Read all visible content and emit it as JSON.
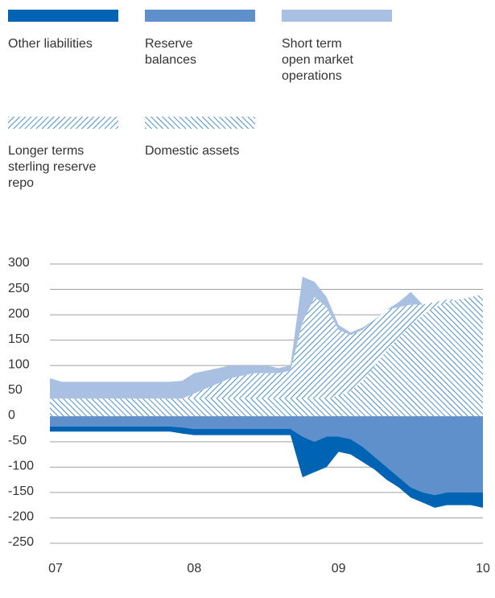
{
  "chart_data": {
    "type": "area",
    "stacked": true,
    "categories": [
      "07",
      null,
      null,
      null,
      null,
      null,
      null,
      null,
      null,
      null,
      null,
      null,
      "08",
      null,
      null,
      null,
      null,
      null,
      null,
      null,
      null,
      null,
      null,
      null,
      "09",
      null,
      null,
      null,
      null,
      null,
      null,
      null,
      null,
      null,
      null,
      null,
      "10"
    ],
    "series": [
      {
        "name": "Domestic assets",
        "color": "#0063b4",
        "pattern": "hatch-back",
        "values": [
          35,
          35,
          35,
          35,
          35,
          35,
          35,
          35,
          35,
          35,
          35,
          35,
          35,
          35,
          35,
          35,
          35,
          35,
          35,
          35,
          35,
          35,
          35,
          35,
          40,
          50,
          70,
          100,
          130,
          155,
          180,
          200,
          215,
          225,
          230,
          235,
          240
        ]
      },
      {
        "name": "Longer terms sterling reserve repo",
        "color": "#0063b4",
        "pattern": "hatch-forward",
        "values": [
          0,
          0,
          0,
          0,
          0,
          0,
          0,
          0,
          0,
          0,
          0,
          0,
          10,
          20,
          30,
          40,
          45,
          50,
          50,
          50,
          55,
          150,
          200,
          180,
          130,
          110,
          100,
          90,
          80,
          60,
          40,
          20,
          10,
          5,
          0,
          0,
          0
        ]
      },
      {
        "name": "Short term open market operations",
        "color": "#a9c0e2",
        "values": [
          40,
          33,
          33,
          33,
          33,
          33,
          33,
          33,
          33,
          33,
          33,
          35,
          40,
          35,
          30,
          25,
          20,
          15,
          15,
          10,
          10,
          90,
          30,
          20,
          10,
          5,
          5,
          0,
          0,
          10,
          25,
          0,
          0,
          0,
          0,
          0,
          0
        ]
      },
      {
        "name": "Reserve balances",
        "color": "#5f90cc",
        "values": [
          -20,
          -20,
          -20,
          -20,
          -20,
          -20,
          -20,
          -20,
          -20,
          -20,
          -20,
          -22,
          -25,
          -25,
          -25,
          -25,
          -25,
          -25,
          -25,
          -25,
          -25,
          -40,
          -50,
          -40,
          -40,
          -45,
          -60,
          -80,
          -100,
          -120,
          -140,
          -150,
          -155,
          -150,
          -150,
          -150,
          -150
        ]
      },
      {
        "name": "Other liabilities",
        "color": "#0063b4",
        "values": [
          -10,
          -10,
          -10,
          -10,
          -10,
          -10,
          -10,
          -10,
          -10,
          -10,
          -10,
          -12,
          -12,
          -12,
          -12,
          -12,
          -12,
          -12,
          -12,
          -12,
          -12,
          -80,
          -60,
          -60,
          -30,
          -30,
          -30,
          -25,
          -25,
          -20,
          -20,
          -20,
          -25,
          -25,
          -25,
          -25,
          -30
        ]
      }
    ],
    "legend_order": [
      4,
      3,
      2,
      1,
      0
    ],
    "ylim": [
      -250,
      300
    ],
    "yticks": [
      -250,
      -200,
      -150,
      -100,
      -50,
      0,
      50,
      100,
      150,
      200,
      250,
      300
    ],
    "grid": true
  }
}
